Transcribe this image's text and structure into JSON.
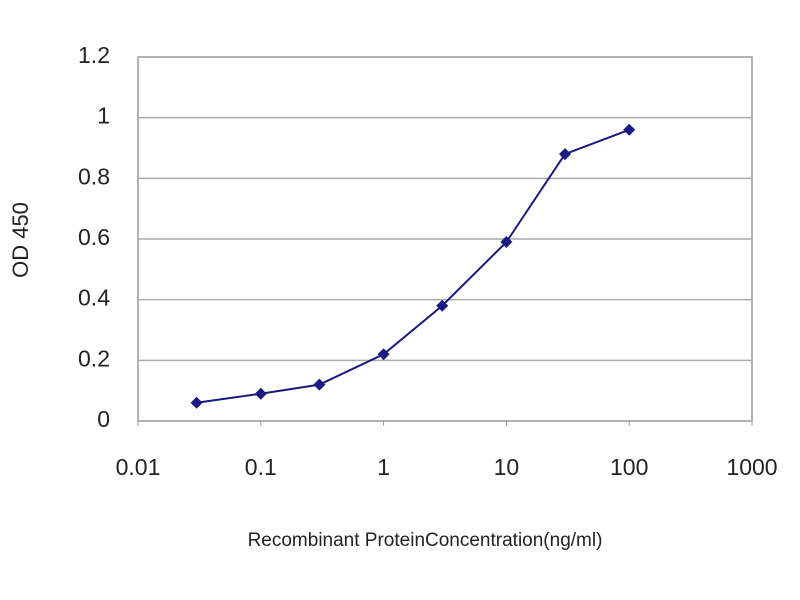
{
  "chart_data": {
    "type": "line",
    "x_label": "Recombinant ProteinConcentration(ng/ml)",
    "y_label": "OD 450",
    "x": [
      0.03,
      0.1,
      0.3,
      1,
      3,
      10,
      30,
      100
    ],
    "series": [
      {
        "color": "#1a1a80",
        "values": [
          0.06,
          0.09,
          0.12,
          0.22,
          0.38,
          0.59,
          0.88,
          0.96
        ]
      }
    ],
    "xlim": [
      0.01,
      1000
    ],
    "xscale": "log",
    "xticks": [
      0.01,
      0.1,
      1,
      10,
      100,
      1000
    ],
    "ylim": [
      0,
      1.2
    ],
    "yticks": [
      0,
      0.2,
      0.4,
      0.6,
      0.8,
      1,
      1.2
    ],
    "grid": true
  }
}
